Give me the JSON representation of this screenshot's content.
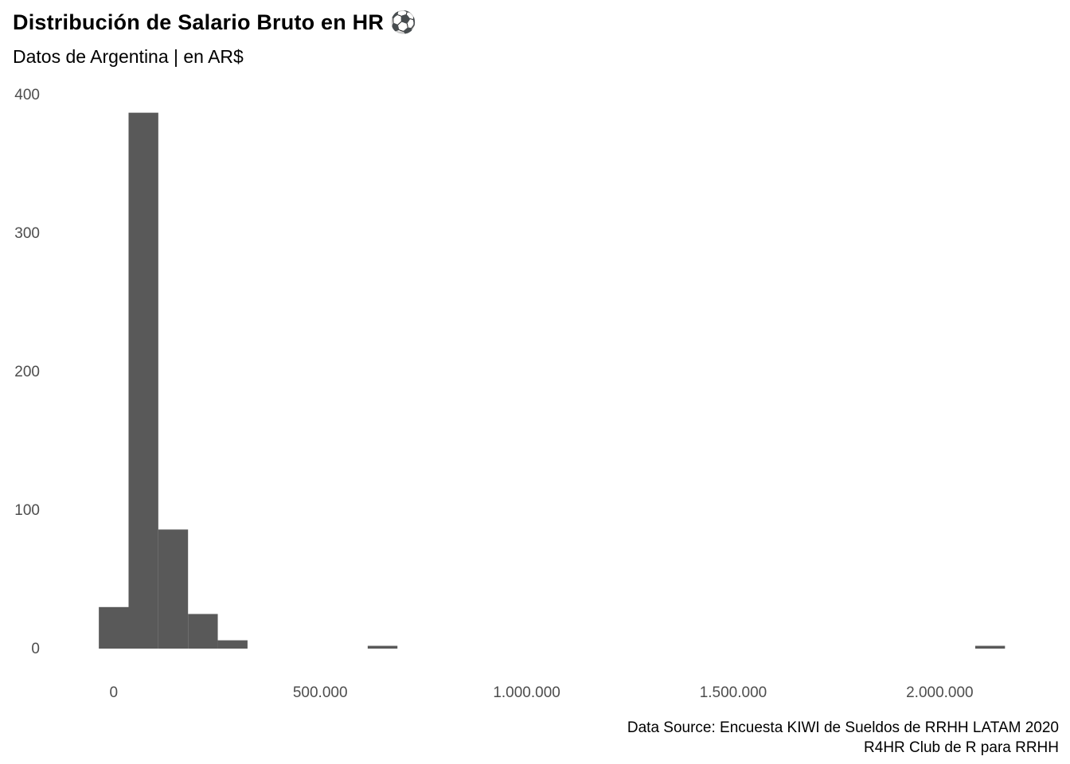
{
  "chart_data": {
    "type": "histogram",
    "title": "Distribución de Salario Bruto en HR ⚽",
    "subtitle": "Datos de Argentina | en AR$",
    "caption_line1": "Data Source: Encuesta KIWI de Sueldos de RRHH LATAM 2020",
    "caption_line2": "R4HR Club de R para RRHH",
    "xlabel": "",
    "ylabel": "",
    "bar_color": "#595959",
    "axis_text_color": "#4d4d4d",
    "xlim": [
      -150000,
      2300000
    ],
    "ylim": [
      0,
      400
    ],
    "grid": "off",
    "x_ticks": [
      {
        "value": 0,
        "label": "0"
      },
      {
        "value": 500000,
        "label": "500.000"
      },
      {
        "value": 1000000,
        "label": "1.000.000"
      },
      {
        "value": 1500000,
        "label": "1.500.000"
      },
      {
        "value": 2000000,
        "label": "2.000.000"
      }
    ],
    "y_ticks": [
      {
        "value": 0,
        "label": "0"
      },
      {
        "value": 100,
        "label": "100"
      },
      {
        "value": 200,
        "label": "200"
      },
      {
        "value": 300,
        "label": "300"
      },
      {
        "value": 400,
        "label": "400"
      }
    ],
    "bins": [
      {
        "start": -36000,
        "end": 36000,
        "count": 30
      },
      {
        "start": 36000,
        "end": 108000,
        "count": 387
      },
      {
        "start": 108000,
        "end": 180000,
        "count": 86
      },
      {
        "start": 180000,
        "end": 252000,
        "count": 25
      },
      {
        "start": 252000,
        "end": 324000,
        "count": 6
      },
      {
        "start": 615000,
        "end": 687000,
        "count": 2
      },
      {
        "start": 2086000,
        "end": 2158000,
        "count": 2
      }
    ]
  }
}
